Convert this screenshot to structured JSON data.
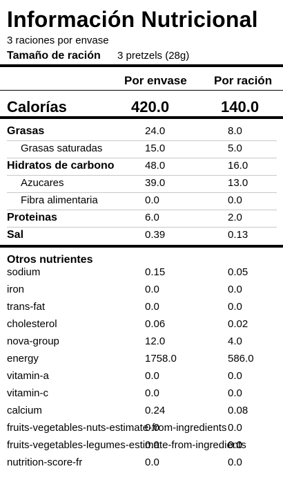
{
  "header": {
    "title": "Información Nutricional",
    "servings_text": "3 raciones por envase",
    "serving_size_label": "Tamaño de ración",
    "serving_size_value": "3 pretzels (28g)"
  },
  "columns": {
    "per_package": "Por envase",
    "per_serving": "Por ración"
  },
  "calories": {
    "label": "Calorías",
    "per_package": "420.0",
    "per_serving": "140.0"
  },
  "nutrients": [
    {
      "label": "Grasas",
      "per_package": "24.0",
      "per_serving": "8.0"
    },
    {
      "label": "Grasas saturadas",
      "per_package": "15.0",
      "per_serving": "5.0"
    },
    {
      "label": "Hidratos de carbono",
      "per_package": "48.0",
      "per_serving": "16.0"
    },
    {
      "label": "Azucares",
      "per_package": "39.0",
      "per_serving": "13.0"
    },
    {
      "label": "Fibra alimentaria",
      "per_package": "0.0",
      "per_serving": "0.0"
    },
    {
      "label": "Proteinas",
      "per_package": "6.0",
      "per_serving": "2.0"
    },
    {
      "label": "Sal",
      "per_package": "0.39",
      "per_serving": "0.13"
    }
  ],
  "others_heading": "Otros nutrientes",
  "other_nutrients": [
    {
      "label": "sodium",
      "per_package": "0.15",
      "per_serving": "0.05"
    },
    {
      "label": "iron",
      "per_package": "0.0",
      "per_serving": "0.0"
    },
    {
      "label": "trans-fat",
      "per_package": "0.0",
      "per_serving": "0.0"
    },
    {
      "label": "cholesterol",
      "per_package": "0.06",
      "per_serving": "0.02"
    },
    {
      "label": "nova-group",
      "per_package": "12.0",
      "per_serving": "4.0"
    },
    {
      "label": "energy",
      "per_package": "1758.0",
      "per_serving": "586.0"
    },
    {
      "label": "vitamin-a",
      "per_package": "0.0",
      "per_serving": "0.0"
    },
    {
      "label": "vitamin-c",
      "per_package": "0.0",
      "per_serving": "0.0"
    },
    {
      "label": "calcium",
      "per_package": "0.24",
      "per_serving": "0.08"
    },
    {
      "label": "fruits-vegetables-nuts-estimate-from-ingredients",
      "per_package": "0.0",
      "per_serving": "0.0"
    },
    {
      "label": "fruits-vegetables-legumes-estimate-from-ingredients",
      "per_package": "0.0",
      "per_serving": "0.0"
    },
    {
      "label": "nutrition-score-fr",
      "per_package": "0.0",
      "per_serving": "0.0"
    }
  ]
}
